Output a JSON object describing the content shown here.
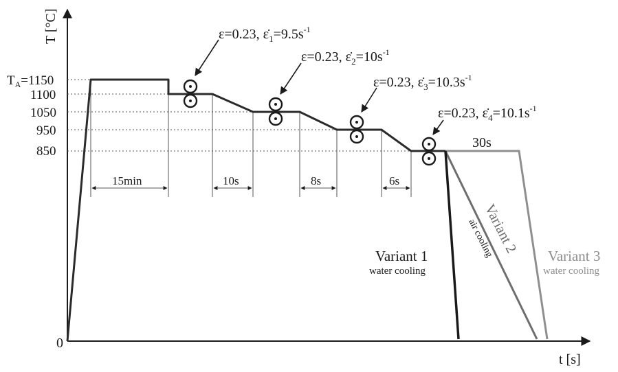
{
  "axes": {
    "y_label": "T [°C]",
    "x_label": "t [s]",
    "origin": "0",
    "y_ticks": [
      {
        "prefix": "T",
        "sub": "A",
        "suffix": "=1150"
      },
      {
        "prefix": "",
        "sub": "",
        "suffix": "1100"
      },
      {
        "prefix": "",
        "sub": "",
        "suffix": "1050"
      },
      {
        "prefix": "",
        "sub": "",
        "suffix": "950"
      },
      {
        "prefix": "",
        "sub": "",
        "suffix": "850"
      }
    ]
  },
  "intervals": {
    "hold": "15min",
    "p1": "10s",
    "p2": "8s",
    "p3": "6s",
    "final": "30s"
  },
  "passes": [
    {
      "strain": "ε=0.23, ε̇",
      "idx": "1",
      "rate": "=9.5s",
      "exp": "-1"
    },
    {
      "strain": "ε=0.23, ε̇",
      "idx": "2",
      "rate": "=10s",
      "exp": "-1"
    },
    {
      "strain": "ε=0.23, ε̇",
      "idx": "3",
      "rate": "=10.3s",
      "exp": "-1"
    },
    {
      "strain": "ε=0.23, ε̇",
      "idx": "4",
      "rate": "=10.1s",
      "exp": "-1"
    }
  ],
  "variants": {
    "v1_title": "Variant 1",
    "v1_sub": "water cooling",
    "v2_title": "Variant 2",
    "v2_sub": "air cooling",
    "v3_title": "Variant 3",
    "v3_sub": "water cooling"
  },
  "colors": {
    "main": "#2b2b2b",
    "variant2": "#6e6e6e",
    "variant3": "#8f8f8f"
  }
}
